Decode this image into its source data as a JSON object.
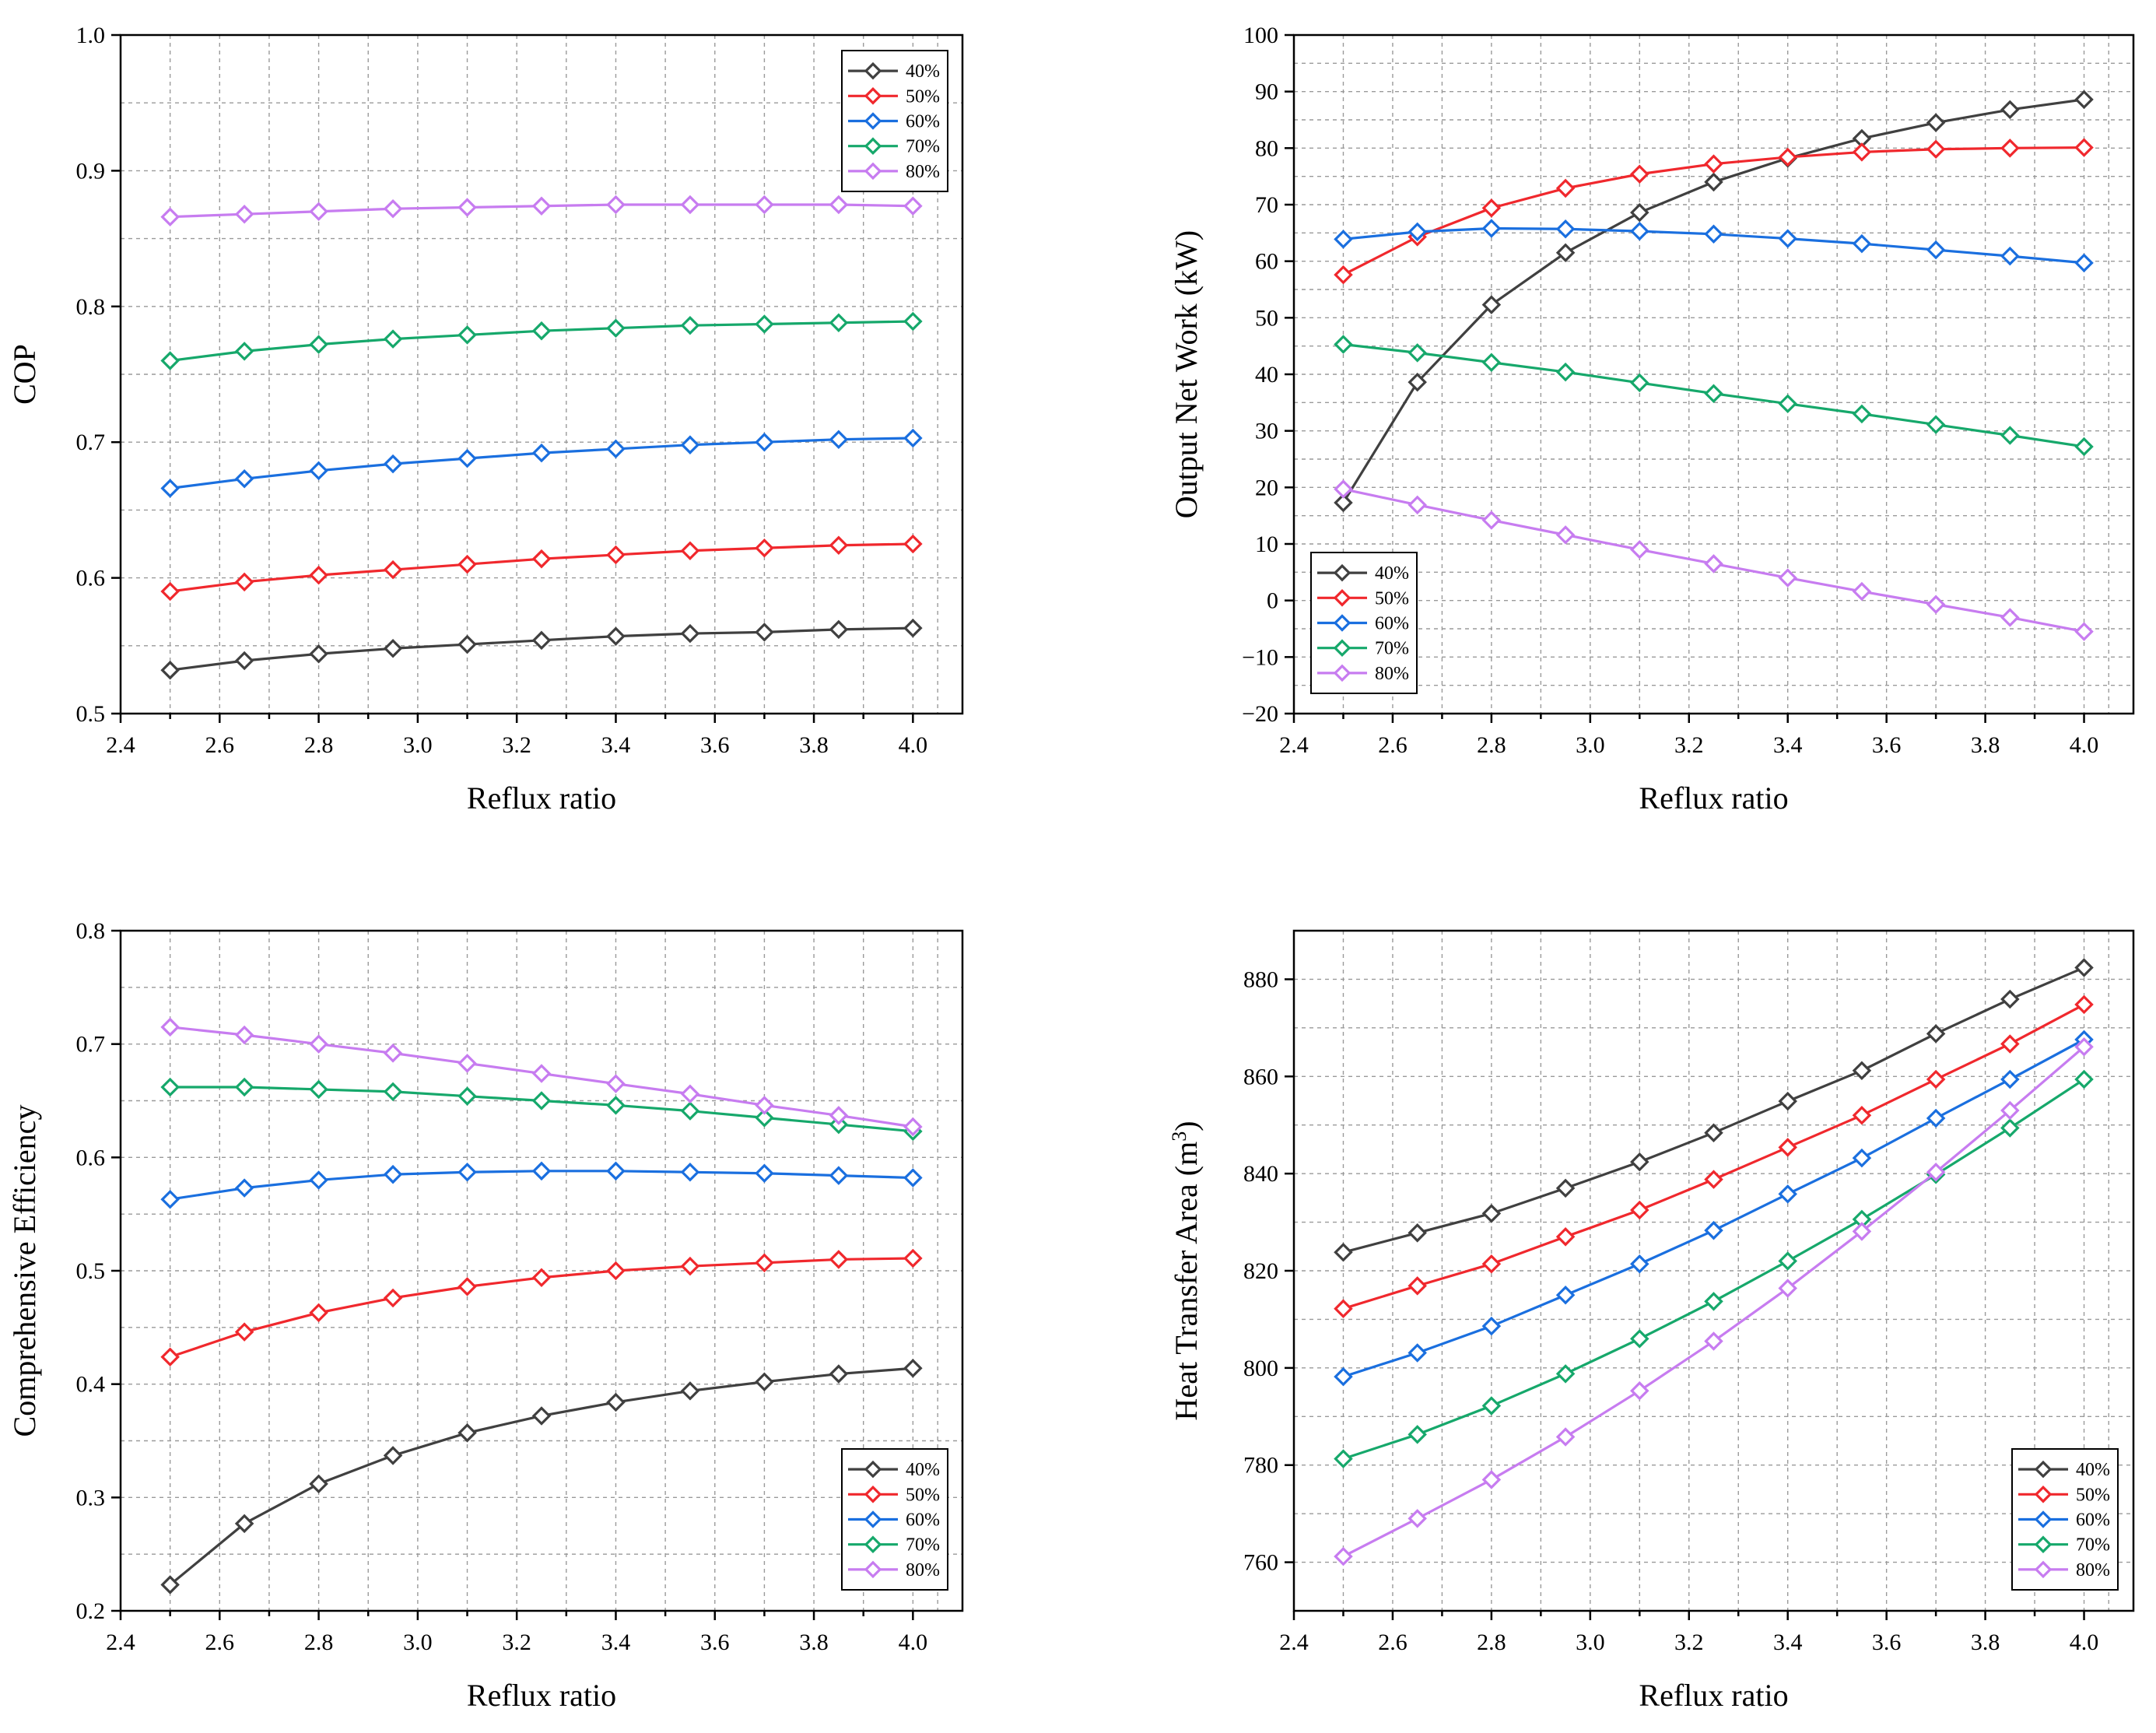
{
  "chart_data": [
    {
      "type": "line",
      "title": "",
      "xlabel": "Reflux ratio",
      "ylabel": "COP",
      "xlim": [
        2.4,
        4.1
      ],
      "ylim": [
        0.5,
        1.0
      ],
      "xticks": [
        2.4,
        2.6,
        2.8,
        3.0,
        3.2,
        3.4,
        3.6,
        3.8,
        4.0
      ],
      "xtick_labels": [
        "2.4",
        "2.6",
        "2.8",
        "3.0",
        "3.2",
        "3.4",
        "3.6",
        "3.8",
        "4.0"
      ],
      "yticks": [
        0.5,
        0.6,
        0.7,
        0.8,
        0.9,
        1.0
      ],
      "ytick_labels": [
        "0.5",
        "0.6",
        "0.7",
        "0.8",
        "0.9",
        "1.0"
      ],
      "grid": true,
      "legend_position": "top-right",
      "x": [
        2.5,
        2.65,
        2.8,
        2.95,
        3.1,
        3.25,
        3.4,
        3.55,
        3.7,
        3.85,
        4.0
      ],
      "series": [
        {
          "name": "40%",
          "color": "#404040",
          "values": [
            0.532,
            0.539,
            0.544,
            0.548,
            0.551,
            0.554,
            0.557,
            0.559,
            0.56,
            0.562,
            0.563
          ]
        },
        {
          "name": "50%",
          "color": "#f0282d",
          "values": [
            0.59,
            0.597,
            0.602,
            0.606,
            0.61,
            0.614,
            0.617,
            0.62,
            0.622,
            0.624,
            0.625
          ]
        },
        {
          "name": "60%",
          "color": "#1a6fdf",
          "values": [
            0.666,
            0.673,
            0.679,
            0.684,
            0.688,
            0.692,
            0.695,
            0.698,
            0.7,
            0.702,
            0.703
          ]
        },
        {
          "name": "70%",
          "color": "#16a86b",
          "values": [
            0.76,
            0.767,
            0.772,
            0.776,
            0.779,
            0.782,
            0.784,
            0.786,
            0.787,
            0.788,
            0.789
          ]
        },
        {
          "name": "80%",
          "color": "#c77cf0",
          "values": [
            0.866,
            0.868,
            0.87,
            0.872,
            0.873,
            0.874,
            0.875,
            0.875,
            0.875,
            0.875,
            0.874
          ]
        }
      ]
    },
    {
      "type": "line",
      "title": "",
      "xlabel": "Reflux ratio",
      "ylabel": "Output Net Work (kW)",
      "xlim": [
        2.4,
        4.1
      ],
      "ylim": [
        -20,
        100
      ],
      "xticks": [
        2.4,
        2.6,
        2.8,
        3.0,
        3.2,
        3.4,
        3.6,
        3.8,
        4.0
      ],
      "xtick_labels": [
        "2.4",
        "2.6",
        "2.8",
        "3.0",
        "3.2",
        "3.4",
        "3.6",
        "3.8",
        "4.0"
      ],
      "yticks": [
        -20,
        -10,
        0,
        10,
        20,
        30,
        40,
        50,
        60,
        70,
        80,
        90,
        100
      ],
      "ytick_labels": [
        "−20",
        "−10",
        "0",
        "10",
        "20",
        "30",
        "40",
        "50",
        "60",
        "70",
        "80",
        "90",
        "100"
      ],
      "grid": true,
      "legend_position": "bottom-left",
      "x": [
        2.5,
        2.65,
        2.8,
        2.95,
        3.1,
        3.25,
        3.4,
        3.55,
        3.7,
        3.85,
        4.0
      ],
      "series": [
        {
          "name": "40%",
          "color": "#404040",
          "values": [
            17.3,
            38.6,
            52.3,
            61.5,
            68.6,
            74.0,
            78.2,
            81.7,
            84.5,
            86.8,
            88.6
          ]
        },
        {
          "name": "50%",
          "color": "#f0282d",
          "values": [
            57.6,
            64.3,
            69.4,
            72.9,
            75.4,
            77.2,
            78.4,
            79.3,
            79.8,
            80.0,
            80.1
          ]
        },
        {
          "name": "60%",
          "color": "#1a6fdf",
          "values": [
            63.9,
            65.2,
            65.8,
            65.7,
            65.3,
            64.8,
            64.0,
            63.1,
            62.0,
            60.9,
            59.7
          ]
        },
        {
          "name": "70%",
          "color": "#16a86b",
          "values": [
            45.3,
            43.8,
            42.1,
            40.4,
            38.5,
            36.6,
            34.8,
            33.0,
            31.1,
            29.2,
            27.2
          ]
        },
        {
          "name": "80%",
          "color": "#c77cf0",
          "values": [
            19.7,
            16.9,
            14.2,
            11.6,
            9.0,
            6.5,
            4.0,
            1.6,
            -0.7,
            -3.0,
            -5.5
          ]
        }
      ]
    },
    {
      "type": "line",
      "title": "",
      "xlabel": "Reflux ratio",
      "ylabel": "Comprehensive Efficiency",
      "xlim": [
        2.4,
        4.1
      ],
      "ylim": [
        0.2,
        0.8
      ],
      "xticks": [
        2.4,
        2.6,
        2.8,
        3.0,
        3.2,
        3.4,
        3.6,
        3.8,
        4.0
      ],
      "xtick_labels": [
        "2.4",
        "2.6",
        "2.8",
        "3.0",
        "3.2",
        "3.4",
        "3.6",
        "3.8",
        "4.0"
      ],
      "yticks": [
        0.2,
        0.3,
        0.4,
        0.5,
        0.6,
        0.7,
        0.8
      ],
      "ytick_labels": [
        "0.2",
        "0.3",
        "0.4",
        "0.5",
        "0.6",
        "0.7",
        "0.8"
      ],
      "grid": true,
      "legend_position": "bottom-right",
      "x": [
        2.5,
        2.65,
        2.8,
        2.95,
        3.1,
        3.25,
        3.4,
        3.55,
        3.7,
        3.85,
        4.0
      ],
      "series": [
        {
          "name": "40%",
          "color": "#404040",
          "values": [
            0.223,
            0.277,
            0.312,
            0.337,
            0.357,
            0.372,
            0.384,
            0.394,
            0.402,
            0.409,
            0.414
          ]
        },
        {
          "name": "50%",
          "color": "#f0282d",
          "values": [
            0.424,
            0.446,
            0.463,
            0.476,
            0.486,
            0.494,
            0.5,
            0.504,
            0.507,
            0.51,
            0.511
          ]
        },
        {
          "name": "60%",
          "color": "#1a6fdf",
          "values": [
            0.563,
            0.573,
            0.58,
            0.585,
            0.587,
            0.588,
            0.588,
            0.587,
            0.586,
            0.584,
            0.582
          ]
        },
        {
          "name": "70%",
          "color": "#16a86b",
          "values": [
            0.662,
            0.662,
            0.66,
            0.658,
            0.654,
            0.65,
            0.646,
            0.641,
            0.635,
            0.629,
            0.623
          ]
        },
        {
          "name": "80%",
          "color": "#c77cf0",
          "values": [
            0.715,
            0.708,
            0.7,
            0.692,
            0.683,
            0.674,
            0.665,
            0.656,
            0.646,
            0.637,
            0.627
          ]
        }
      ]
    },
    {
      "type": "line",
      "title": "",
      "xlabel": "Reflux ratio",
      "ylabel": "Heat Transfer Area (m",
      "ylabel_sup": "3",
      "ylabel_end": ")",
      "xlim": [
        2.4,
        4.1
      ],
      "ylim": [
        750,
        890
      ],
      "xticks": [
        2.4,
        2.6,
        2.8,
        3.0,
        3.2,
        3.4,
        3.6,
        3.8,
        4.0
      ],
      "xtick_labels": [
        "2.4",
        "2.6",
        "2.8",
        "3.0",
        "3.2",
        "3.4",
        "3.6",
        "3.8",
        "4.0"
      ],
      "yticks": [
        760,
        780,
        800,
        820,
        840,
        860,
        880
      ],
      "ytick_labels": [
        "760",
        "780",
        "800",
        "820",
        "840",
        "860",
        "880"
      ],
      "grid": true,
      "legend_position": "bottom-right",
      "x": [
        2.5,
        2.65,
        2.8,
        2.95,
        3.1,
        3.25,
        3.4,
        3.55,
        3.7,
        3.85,
        4.0
      ],
      "series": [
        {
          "name": "40%",
          "color": "#404040",
          "values": [
            823.8,
            827.8,
            831.8,
            837.0,
            842.4,
            848.4,
            854.9,
            861.2,
            868.8,
            875.9,
            882.4
          ]
        },
        {
          "name": "50%",
          "color": "#f0282d",
          "values": [
            812.2,
            816.9,
            821.4,
            827.0,
            832.5,
            838.8,
            845.4,
            852.0,
            859.4,
            866.7,
            874.8
          ]
        },
        {
          "name": "60%",
          "color": "#1a6fdf",
          "values": [
            798.2,
            803.1,
            808.6,
            815.0,
            821.4,
            828.3,
            835.8,
            843.2,
            851.4,
            859.4,
            867.6
          ]
        },
        {
          "name": "70%",
          "color": "#16a86b",
          "values": [
            781.3,
            786.3,
            792.2,
            798.8,
            806.0,
            813.7,
            822.0,
            830.6,
            839.8,
            849.4,
            859.4
          ]
        },
        {
          "name": "80%",
          "color": "#c77cf0",
          "values": [
            761.2,
            769.0,
            777.0,
            785.8,
            795.3,
            805.5,
            816.4,
            828.1,
            840.3,
            853.0,
            866.1
          ]
        }
      ]
    }
  ]
}
